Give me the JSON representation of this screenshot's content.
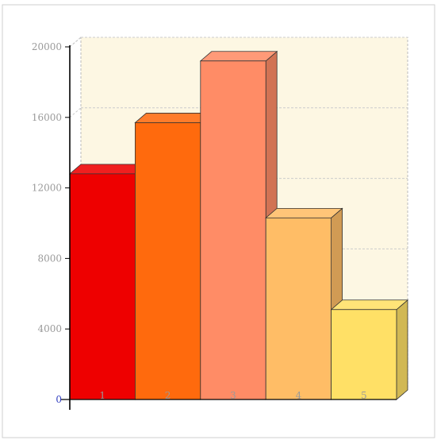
{
  "chart_data": {
    "type": "bar",
    "title": "",
    "xlabel": "",
    "ylabel": "",
    "categories": [
      "1",
      "2",
      "3",
      "4",
      "5"
    ],
    "values": [
      12800,
      15700,
      19200,
      10300,
      5100
    ],
    "ylim": [
      0,
      20000
    ],
    "yticks": [
      "0",
      "4000",
      "8000",
      "12000",
      "16000",
      "20000"
    ],
    "grid": true,
    "style": "3d",
    "colors": [
      "#ee0000",
      "#ff6a0d",
      "#ff8c66",
      "#ffbd66",
      "#ffe066"
    ],
    "wall_color": "#fdf7e3"
  }
}
